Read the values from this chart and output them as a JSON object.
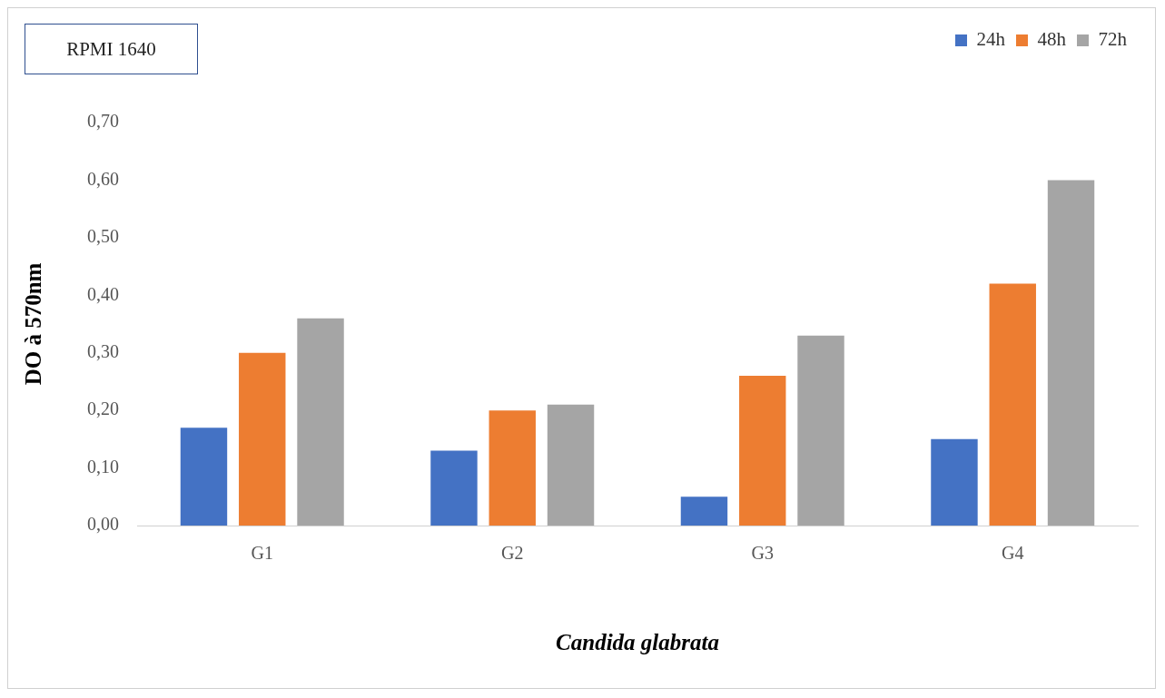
{
  "chart_data": {
    "type": "bar",
    "title": "RPMI 1640",
    "xlabel": "Candida glabrata",
    "ylabel": "DO à 570nm",
    "categories": [
      "G1",
      "G2",
      "G3",
      "G4"
    ],
    "series": [
      {
        "name": "24h",
        "color": "#4472c4",
        "values": [
          0.17,
          0.13,
          0.05,
          0.15
        ]
      },
      {
        "name": "48h",
        "color": "#ed7d31",
        "values": [
          0.3,
          0.2,
          0.26,
          0.42
        ]
      },
      {
        "name": "72h",
        "color": "#a5a5a5",
        "values": [
          0.36,
          0.21,
          0.33,
          0.6
        ]
      }
    ],
    "ylim": [
      0,
      0.7
    ],
    "yticks": [
      {
        "value": 0,
        "label": "0,00"
      },
      {
        "value": 0.1,
        "label": "0,10"
      },
      {
        "value": 0.2,
        "label": "0,20"
      },
      {
        "value": 0.3,
        "label": "0,30"
      },
      {
        "value": 0.4,
        "label": "0,40"
      },
      {
        "value": 0.5,
        "label": "0,50"
      },
      {
        "value": 0.6,
        "label": "0,60"
      },
      {
        "value": 0.7,
        "label": "0,70"
      }
    ],
    "grid": false,
    "legend": "top right"
  }
}
